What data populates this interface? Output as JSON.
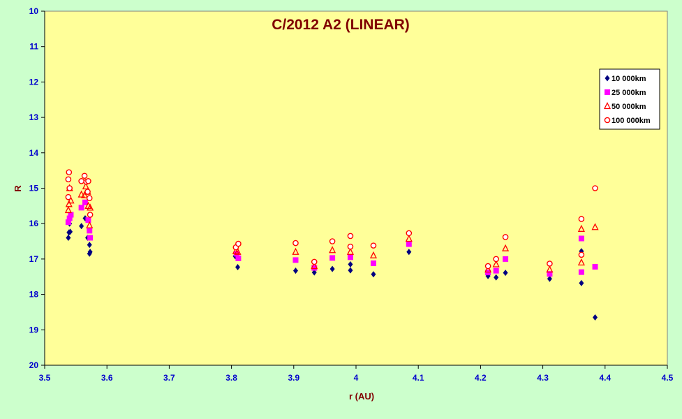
{
  "chart_data": {
    "type": "scatter",
    "title": "C/2012 A2 (LINEAR)",
    "xlabel": "r (AU)",
    "ylabel": "R",
    "xlim": [
      3.5,
      4.5
    ],
    "ylim": [
      10,
      20
    ],
    "y_inverted": true,
    "x_ticks": [
      "3.5",
      "3.6",
      "3.7",
      "3.8",
      "3.9",
      "4",
      "4.1",
      "4.2",
      "4.3",
      "4.4",
      "4.5"
    ],
    "y_ticks": [
      "10",
      "11",
      "12",
      "13",
      "14",
      "15",
      "16",
      "17",
      "18",
      "19",
      "20"
    ],
    "grid": false,
    "legend_position": "top-right",
    "colors": {
      "page_background": "#ccffcc",
      "plot_background": "#ffff99",
      "axis_text": "#0000cc",
      "title": "#800000"
    },
    "series": [
      {
        "name": "10 000km",
        "marker": "diamond",
        "color": "#000080",
        "points": [
          [
            3.538,
            16.4
          ],
          [
            3.539,
            16.25
          ],
          [
            3.54,
            16.0
          ],
          [
            3.541,
            16.23
          ],
          [
            3.559,
            16.07
          ],
          [
            3.565,
            15.85
          ],
          [
            3.569,
            16.4
          ],
          [
            3.572,
            16.6
          ],
          [
            3.572,
            16.85
          ],
          [
            3.573,
            16.8
          ],
          [
            3.806,
            16.92
          ],
          [
            3.81,
            17.23
          ],
          [
            3.903,
            17.33
          ],
          [
            3.933,
            17.38
          ],
          [
            3.962,
            17.28
          ],
          [
            3.991,
            17.15
          ],
          [
            3.991,
            17.32
          ],
          [
            4.028,
            17.43
          ],
          [
            4.085,
            16.8
          ],
          [
            4.212,
            17.48
          ],
          [
            4.225,
            17.52
          ],
          [
            4.24,
            17.39
          ],
          [
            4.311,
            17.56
          ],
          [
            4.362,
            16.78
          ],
          [
            4.362,
            17.68
          ],
          [
            4.384,
            18.65
          ]
        ]
      },
      {
        "name": "25 000km",
        "marker": "square",
        "color": "#ff00ff",
        "points": [
          [
            3.538,
            15.96
          ],
          [
            3.54,
            15.85
          ],
          [
            3.542,
            15.75
          ],
          [
            3.559,
            15.55
          ],
          [
            3.565,
            15.4
          ],
          [
            3.57,
            15.9
          ],
          [
            3.572,
            16.2
          ],
          [
            3.573,
            16.4
          ],
          [
            3.808,
            16.85
          ],
          [
            3.811,
            16.98
          ],
          [
            3.903,
            17.03
          ],
          [
            3.933,
            17.25
          ],
          [
            3.962,
            16.97
          ],
          [
            3.991,
            16.95
          ],
          [
            4.028,
            17.12
          ],
          [
            4.085,
            16.58
          ],
          [
            4.212,
            17.38
          ],
          [
            4.225,
            17.33
          ],
          [
            4.24,
            17.0
          ],
          [
            4.311,
            17.42
          ],
          [
            4.362,
            16.42
          ],
          [
            4.362,
            17.37
          ],
          [
            4.384,
            17.22
          ]
        ]
      },
      {
        "name": "50 000km",
        "marker": "triangle",
        "color": "#ff0000",
        "points": [
          [
            3.538,
            15.62
          ],
          [
            3.539,
            15.45
          ],
          [
            3.54,
            15.0
          ],
          [
            3.542,
            15.35
          ],
          [
            3.559,
            15.18
          ],
          [
            3.564,
            15.2
          ],
          [
            3.566,
            14.95
          ],
          [
            3.569,
            15.1
          ],
          [
            3.57,
            15.5
          ],
          [
            3.572,
            16.05
          ],
          [
            3.573,
            15.55
          ],
          [
            3.807,
            16.78
          ],
          [
            3.81,
            16.8
          ],
          [
            3.903,
            16.8
          ],
          [
            3.933,
            17.2
          ],
          [
            3.962,
            16.75
          ],
          [
            3.991,
            16.8
          ],
          [
            4.028,
            16.9
          ],
          [
            4.085,
            16.43
          ],
          [
            4.212,
            17.3
          ],
          [
            4.225,
            17.15
          ],
          [
            4.24,
            16.7
          ],
          [
            4.311,
            17.3
          ],
          [
            4.362,
            16.15
          ],
          [
            4.362,
            17.1
          ],
          [
            4.384,
            16.1
          ]
        ]
      },
      {
        "name": "100 000km",
        "marker": "circle",
        "color": "#ff0000",
        "points": [
          [
            3.539,
            14.55
          ],
          [
            3.538,
            14.75
          ],
          [
            3.54,
            15.0
          ],
          [
            3.538,
            15.25
          ],
          [
            3.559,
            14.8
          ],
          [
            3.564,
            14.65
          ],
          [
            3.567,
            14.82
          ],
          [
            3.569,
            15.1
          ],
          [
            3.57,
            14.8
          ],
          [
            3.572,
            15.28
          ],
          [
            3.573,
            15.75
          ],
          [
            3.807,
            16.67
          ],
          [
            3.811,
            16.57
          ],
          [
            3.903,
            16.55
          ],
          [
            3.933,
            17.08
          ],
          [
            3.962,
            16.5
          ],
          [
            3.991,
            16.35
          ],
          [
            3.991,
            16.65
          ],
          [
            4.028,
            16.62
          ],
          [
            4.085,
            16.27
          ],
          [
            4.212,
            17.2
          ],
          [
            4.225,
            17.0
          ],
          [
            4.24,
            16.38
          ],
          [
            4.311,
            17.13
          ],
          [
            4.362,
            15.87
          ],
          [
            4.362,
            16.88
          ],
          [
            4.384,
            15.0
          ]
        ]
      }
    ]
  }
}
